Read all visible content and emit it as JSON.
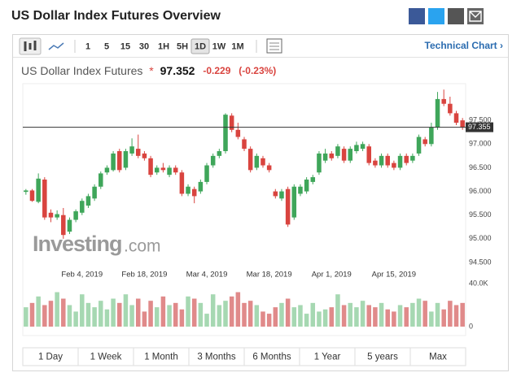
{
  "header": {
    "title": "US Dollar Index Futures Overview"
  },
  "toolbar": {
    "intervals": [
      "1",
      "5",
      "15",
      "30",
      "1H",
      "5H",
      "1D",
      "1W",
      "1M"
    ],
    "active": "1D",
    "link": "Technical Chart ›"
  },
  "quote": {
    "name": "US Dollar Index Futures",
    "marker": "*",
    "price": "97.352",
    "change": "-0.229",
    "change_pct": "(-0.23%)"
  },
  "chart_data": {
    "type": "candlestick",
    "watermark": [
      "Investing",
      ".com"
    ],
    "categories": [
      null,
      null,
      null,
      null,
      null,
      null,
      null,
      null,
      null,
      "Feb 4, 2019",
      null,
      null,
      null,
      null,
      null,
      null,
      null,
      null,
      null,
      "Feb 18, 2019",
      null,
      null,
      null,
      null,
      null,
      null,
      null,
      null,
      null,
      "Mar 4, 2019",
      null,
      null,
      null,
      null,
      null,
      null,
      null,
      null,
      null,
      "Mar 18, 2019",
      null,
      null,
      null,
      null,
      null,
      null,
      null,
      null,
      null,
      "Apr 1, 2019",
      null,
      null,
      null,
      null,
      null,
      null,
      null,
      null,
      null,
      "Apr 15, 2019",
      null,
      null,
      null,
      null,
      null,
      null,
      null,
      null,
      null,
      null,
      null
    ],
    "open": [
      95.99,
      96.02,
      95.78,
      96.25,
      95.55,
      95.45,
      95.5,
      95.15,
      95.4,
      95.55,
      95.7,
      95.85,
      96.1,
      96.4,
      96.45,
      96.85,
      96.5,
      96.8,
      96.9,
      96.8,
      96.7,
      96.4,
      96.5,
      96.35,
      96.5,
      96.4,
      95.95,
      96.05,
      96.0,
      96.2,
      96.55,
      96.75,
      96.85,
      97.6,
      97.3,
      97.1,
      96.9,
      96.5,
      96.7,
      96.55,
      96.0,
      95.85,
      96.05,
      95.45,
      95.95,
      96.0,
      96.2,
      96.4,
      96.65,
      96.8,
      96.75,
      96.9,
      96.65,
      96.85,
      96.9,
      96.95,
      96.65,
      96.55,
      96.75,
      96.6,
      96.5,
      96.75,
      96.65,
      96.8,
      97.1,
      97.0,
      97.35,
      97.95,
      97.85,
      97.65,
      97.5
    ],
    "high": [
      96.05,
      96.05,
      96.38,
      96.3,
      95.62,
      95.6,
      95.65,
      95.45,
      95.62,
      95.85,
      95.95,
      96.15,
      96.42,
      96.55,
      96.85,
      96.9,
      96.9,
      97.12,
      97.2,
      96.85,
      96.75,
      96.55,
      96.6,
      96.55,
      96.55,
      96.45,
      96.15,
      96.1,
      96.25,
      96.6,
      96.8,
      96.9,
      97.65,
      97.65,
      97.45,
      97.15,
      96.95,
      96.8,
      96.75,
      96.6,
      96.05,
      96.05,
      96.1,
      96.15,
      96.15,
      96.3,
      96.35,
      96.85,
      96.9,
      96.85,
      97.0,
      96.95,
      96.95,
      97.05,
      97.05,
      97.0,
      96.7,
      96.8,
      96.8,
      96.65,
      96.8,
      96.8,
      96.8,
      97.2,
      97.15,
      97.45,
      98.1,
      98.15,
      98.0,
      97.7,
      97.55
    ],
    "low": [
      95.93,
      95.78,
      95.75,
      95.4,
      95.35,
      95.4,
      95.0,
      95.1,
      95.35,
      95.5,
      95.65,
      95.8,
      96.05,
      96.35,
      96.42,
      96.4,
      96.45,
      96.75,
      96.7,
      96.65,
      96.3,
      96.35,
      96.4,
      96.3,
      96.35,
      95.9,
      95.9,
      95.75,
      95.95,
      96.15,
      96.5,
      96.7,
      96.8,
      97.25,
      97.1,
      96.85,
      96.4,
      96.45,
      96.5,
      96.4,
      95.85,
      95.8,
      95.25,
      95.4,
      95.9,
      95.95,
      96.15,
      96.35,
      96.6,
      96.65,
      96.7,
      96.6,
      96.6,
      96.8,
      96.85,
      96.55,
      96.5,
      96.5,
      96.5,
      96.45,
      96.45,
      96.55,
      96.6,
      96.75,
      96.95,
      96.95,
      97.3,
      97.8,
      97.6,
      97.4,
      97.3
    ],
    "close": [
      96.02,
      95.8,
      96.27,
      95.45,
      95.45,
      95.52,
      95.08,
      95.4,
      95.58,
      95.8,
      95.9,
      96.1,
      96.38,
      96.5,
      96.8,
      96.45,
      96.85,
      96.95,
      96.75,
      96.7,
      96.35,
      96.5,
      96.45,
      96.5,
      96.4,
      95.95,
      96.1,
      95.9,
      96.2,
      96.55,
      96.75,
      96.85,
      97.62,
      97.3,
      97.15,
      96.9,
      96.45,
      96.75,
      96.55,
      96.45,
      95.9,
      96.0,
      95.3,
      96.1,
      96.1,
      96.25,
      96.3,
      96.8,
      96.8,
      96.7,
      96.95,
      96.65,
      96.9,
      96.98,
      97.0,
      96.6,
      96.55,
      96.75,
      96.55,
      96.5,
      96.75,
      96.6,
      96.75,
      97.15,
      97.0,
      97.35,
      97.95,
      97.85,
      97.65,
      97.45,
      97.35
    ],
    "volume": [
      18000,
      22000,
      28000,
      20000,
      24000,
      32000,
      26000,
      20000,
      14000,
      30000,
      22000,
      18000,
      24000,
      16000,
      26000,
      22000,
      30000,
      20000,
      26000,
      14000,
      24000,
      18000,
      28000,
      20000,
      22000,
      16000,
      28000,
      26000,
      22000,
      12000,
      30000,
      20000,
      24000,
      28000,
      32000,
      22000,
      24000,
      20000,
      14000,
      12000,
      18000,
      22000,
      26000,
      18000,
      20000,
      12000,
      22000,
      14000,
      16000,
      18000,
      30000,
      20000,
      22000,
      18000,
      24000,
      20000,
      18000,
      22000,
      16000,
      14000,
      20000,
      18000,
      22000,
      26000,
      24000,
      14000,
      22000,
      16000,
      24000,
      20000,
      22000
    ],
    "up_color": "#3fa65a",
    "down_color": "#d9443f",
    "volume_up_color": "#a6d8b2",
    "volume_down_color": "#e08a8a",
    "ylim": [
      94.38,
      98.24
    ],
    "yticks": [
      {
        "value": 94.5,
        "label": "94.500"
      },
      {
        "value": 95,
        "label": "95.000"
      },
      {
        "value": 95.5,
        "label": "95.500"
      },
      {
        "value": 96,
        "label": "96.000"
      },
      {
        "value": 96.5,
        "label": "96.500"
      },
      {
        "value": 97,
        "label": "97.000"
      },
      {
        "value": 97.5,
        "label": "97.500"
      }
    ],
    "last": {
      "value": 97.355,
      "label": "97.355"
    },
    "volume_lim": [
      0,
      43000
    ],
    "volume_ticks": [
      {
        "value": 40000,
        "label": "40.0K"
      },
      0
    ],
    "grid": false
  },
  "ranges": [
    "1 Day",
    "1 Week",
    "1 Month",
    "3 Months",
    "6 Months",
    "1 Year",
    "5 years",
    "Max"
  ]
}
